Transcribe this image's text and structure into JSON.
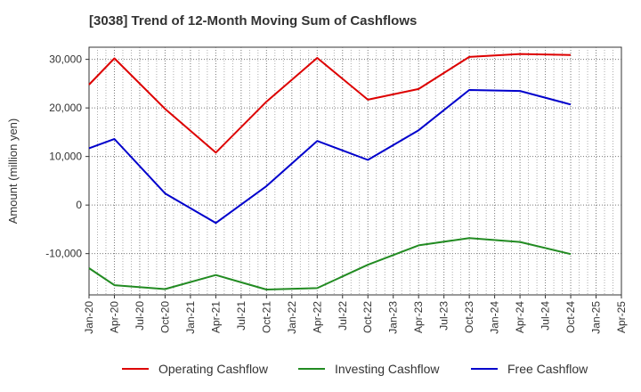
{
  "chart_data": {
    "type": "line",
    "title": "[3038]  Trend of 12-Month Moving Sum of Cashflows",
    "xlabel": "",
    "ylabel": "Amount (million yen)",
    "ylim": [
      -18500,
      32500
    ],
    "yticks": [
      30000,
      20000,
      10000,
      0,
      -10000
    ],
    "ytick_labels": [
      "30,000",
      "20,000",
      "10,000",
      "0",
      "-10,000"
    ],
    "categories": [
      "Jan-20",
      "Apr-20",
      "Jul-20",
      "Oct-20",
      "Jan-21",
      "Apr-21",
      "Jul-21",
      "Oct-21",
      "Jan-22",
      "Apr-22",
      "Jul-22",
      "Oct-22",
      "Jan-23",
      "Apr-23",
      "Jul-23",
      "Oct-23",
      "Jan-24",
      "Apr-24",
      "Jul-24",
      "Oct-24",
      "Jan-25",
      "Apr-25"
    ],
    "series": [
      {
        "name": "Operating Cashflow",
        "color": "#dd0000",
        "values": [
          24800,
          30200,
          null,
          19800,
          null,
          10800,
          null,
          21300,
          null,
          30300,
          null,
          21700,
          null,
          23900,
          null,
          30500,
          null,
          31100,
          null,
          30900,
          null,
          null
        ]
      },
      {
        "name": "Investing Cashflow",
        "color": "#228b22",
        "values": [
          -13000,
          -16500,
          null,
          -17300,
          null,
          -14400,
          null,
          -17400,
          null,
          -17100,
          null,
          -12300,
          null,
          -8300,
          null,
          -6800,
          null,
          -7600,
          null,
          -10100,
          null,
          null
        ]
      },
      {
        "name": "Free Cashflow",
        "color": "#0000cc",
        "values": [
          11700,
          13600,
          null,
          2400,
          null,
          -3700,
          null,
          3900,
          null,
          13200,
          null,
          9300,
          null,
          15400,
          null,
          23700,
          null,
          23500,
          null,
          20700,
          null,
          null
        ]
      }
    ],
    "grid": true,
    "legend_position": "bottom"
  }
}
